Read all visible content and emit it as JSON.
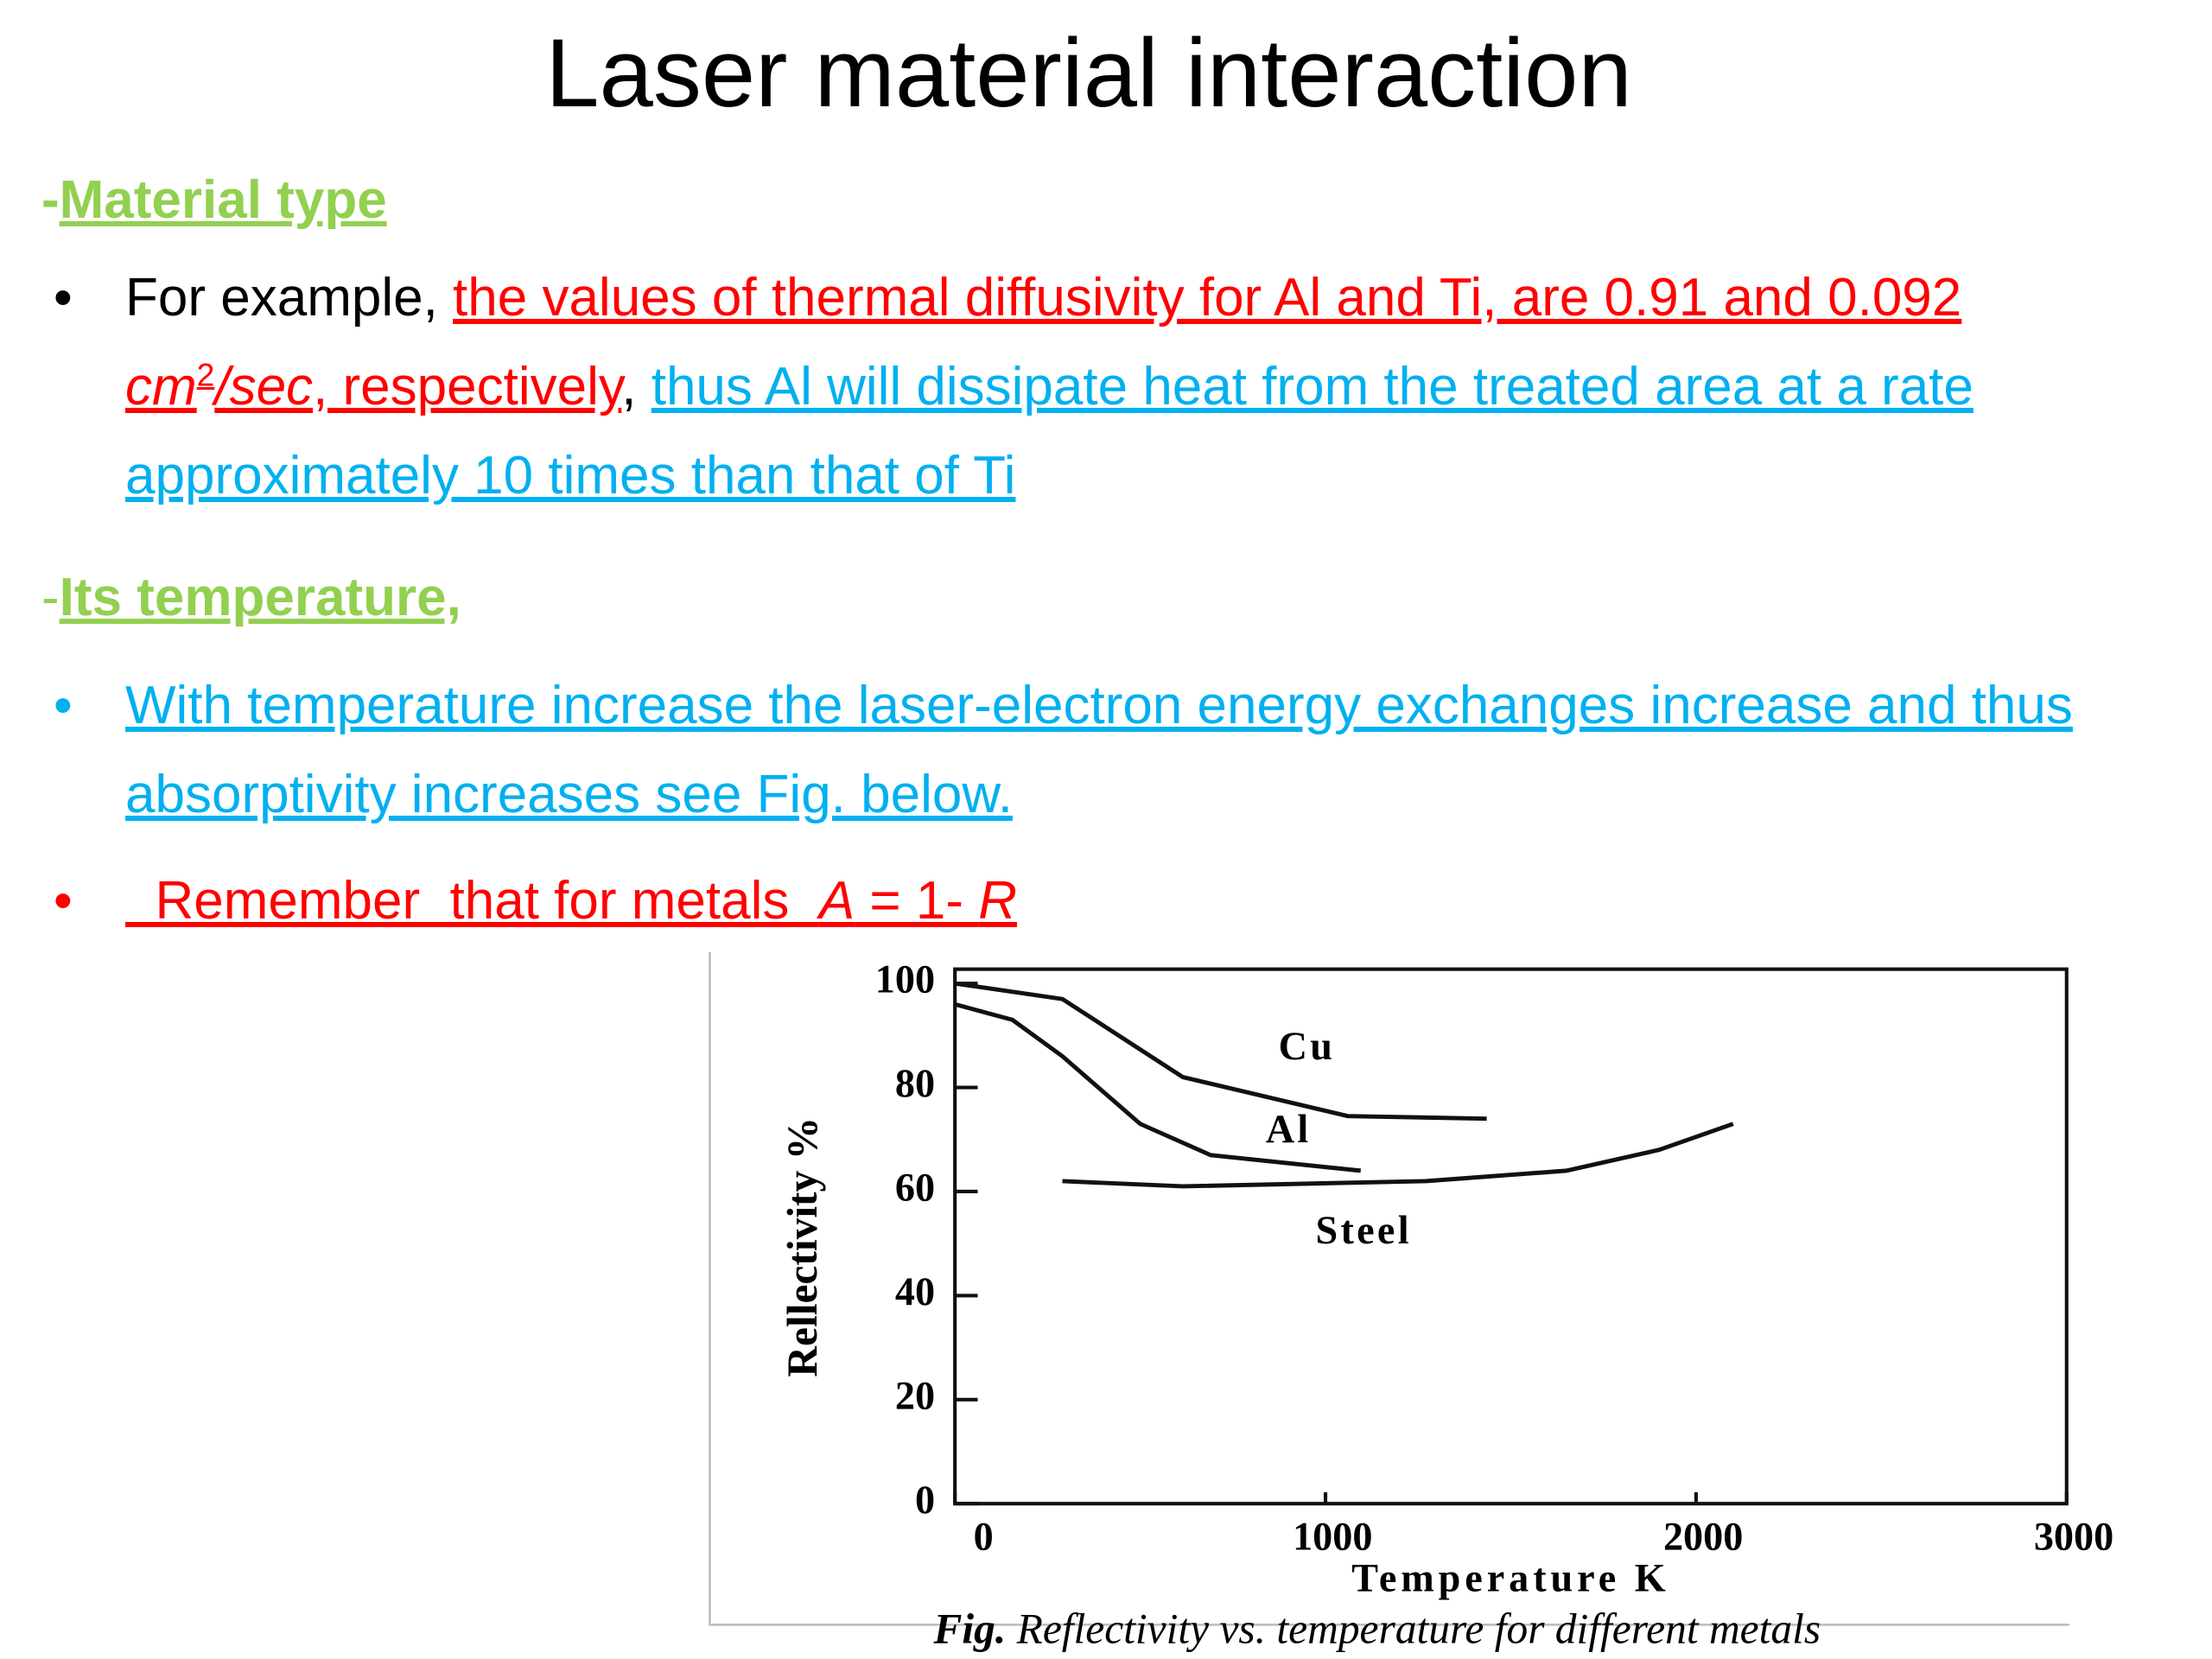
{
  "title": "Laser material interaction",
  "sections": [
    {
      "heading": [
        "-",
        "Material type"
      ],
      "bullets": [
        [
          "For example, ",
          "the values of thermal diffusivity for Al and Ti, are 0.91 and 0.092 ",
          "cm",
          "2",
          "/sec",
          ", respectively",
          ", ",
          "thus Al will dissipate  heat from the treated area at a rate approximately 10 times  than that  of  Ti"
        ]
      ]
    },
    {
      "heading": [
        "-",
        "Its temperature,"
      ],
      "bullets": [
        [
          "With temperature increase the laser-electron energy exchanges increase and thus absorptivity increases see Fig.  below."
        ],
        [
          "  Remember  that for metals  ",
          "A",
          " = 1- ",
          "R"
        ]
      ]
    }
  ],
  "chart_data": {
    "type": "line",
    "y_label": "Rellectivity %",
    "x_label": "Temperature K",
    "xlim": [
      0,
      3000
    ],
    "xticks": [
      0,
      1000,
      2000,
      3000
    ],
    "ylim": [
      0,
      100
    ],
    "yticks": [
      0,
      20,
      40,
      60,
      80,
      100
    ],
    "series": [
      {
        "name": "Cu",
        "color": "#111111",
        "x": [
          0,
          290,
          615,
          1060,
          1435
        ],
        "values": [
          100,
          97,
          82,
          74.5,
          74
        ]
      },
      {
        "name": "Al",
        "color": "#111111",
        "x": [
          0,
          155,
          290,
          500,
          690,
          1095
        ],
        "values": [
          96,
          93,
          86,
          73,
          67,
          64
        ]
      },
      {
        "name": "Steel",
        "color": "#111111",
        "x": [
          290,
          615,
          1270,
          1650,
          1900,
          2100
        ],
        "values": [
          62,
          61,
          62,
          64,
          68,
          73
        ]
      }
    ]
  },
  "caption": [
    "Fig.",
    " Reflectivity vs. temperature for different metals"
  ]
}
